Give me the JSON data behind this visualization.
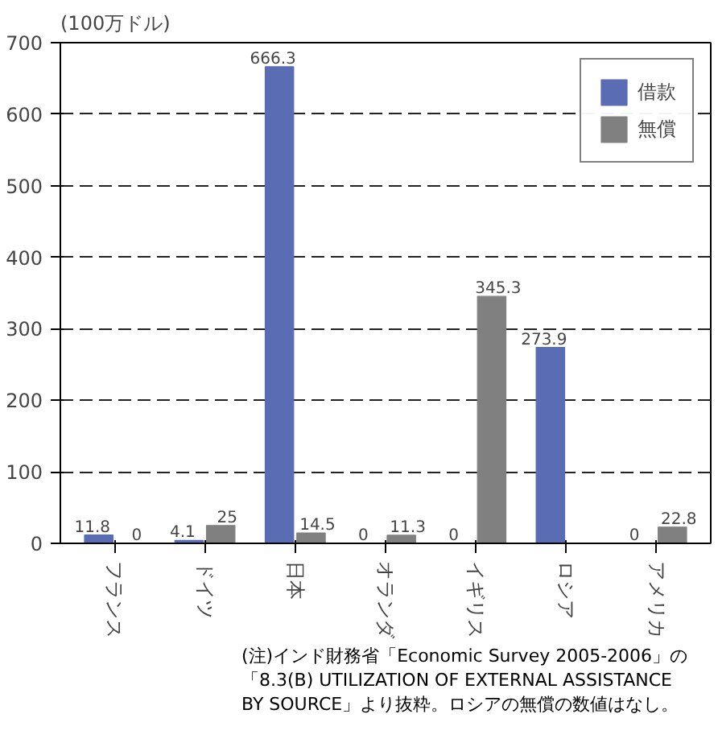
{
  "chart_data": {
    "type": "bar",
    "ylabel": "(100万ドル)",
    "categories": [
      "フランス",
      "ドイツ",
      "日本",
      "オランダ",
      "イギリス",
      "ロシア",
      "アメリカ"
    ],
    "series": [
      {
        "name": "借款",
        "color": "#5a6cb4",
        "values": [
          11.8,
          4.1,
          666.3,
          0,
          0,
          273.9,
          0
        ]
      },
      {
        "name": "無償",
        "color": "#808080",
        "values": [
          0,
          25,
          14.5,
          11.3,
          345.3,
          null,
          22.8
        ]
      }
    ],
    "ylim": [
      0,
      700
    ],
    "yticks": [
      0,
      100,
      200,
      300,
      400,
      500,
      600,
      700
    ],
    "grid": "y",
    "legend": "top right",
    "data_labels": true,
    "annotations": [
      "(注)インド財務省「Economic Survey 2005-2006」の",
      "「8.3(B) UTILIZATION OF EXTERNAL ASSISTANCE",
      "BY SOURCE」より抜粋。ロシアの無償の数値はなし。"
    ]
  }
}
